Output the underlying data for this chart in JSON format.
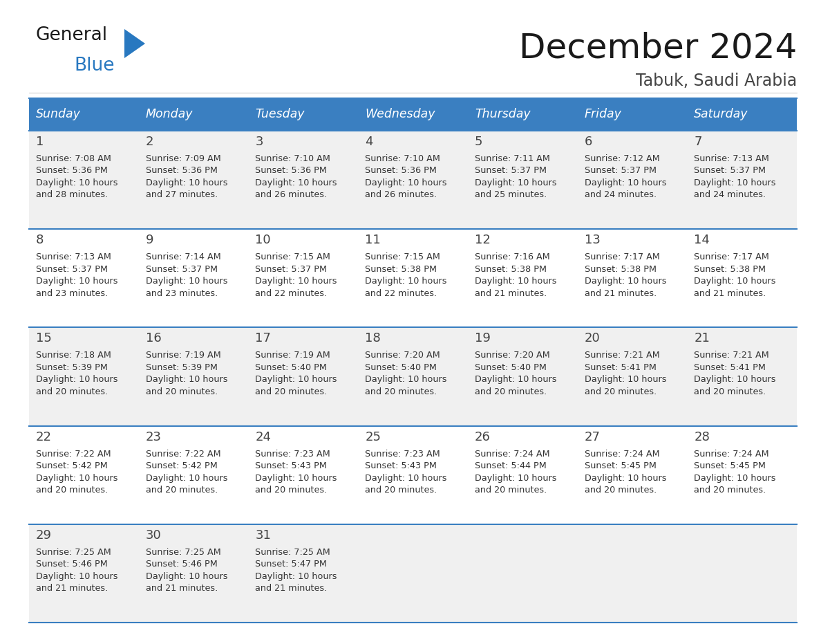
{
  "title": "December 2024",
  "subtitle": "Tabuk, Saudi Arabia",
  "days_of_week": [
    "Sunday",
    "Monday",
    "Tuesday",
    "Wednesday",
    "Thursday",
    "Friday",
    "Saturday"
  ],
  "header_bg": "#3a7fc1",
  "header_text": "#ffffff",
  "row_bg_1": "#f0f0f0",
  "row_bg_2": "#ffffff",
  "border_color": "#3a7fc1",
  "day_num_color": "#444444",
  "text_color": "#333333",
  "calendar": [
    [
      {
        "day": 1,
        "sunrise": "7:08 AM",
        "sunset": "5:36 PM",
        "daylight_line1": "Daylight: 10 hours",
        "daylight_line2": "and 28 minutes."
      },
      {
        "day": 2,
        "sunrise": "7:09 AM",
        "sunset": "5:36 PM",
        "daylight_line1": "Daylight: 10 hours",
        "daylight_line2": "and 27 minutes."
      },
      {
        "day": 3,
        "sunrise": "7:10 AM",
        "sunset": "5:36 PM",
        "daylight_line1": "Daylight: 10 hours",
        "daylight_line2": "and 26 minutes."
      },
      {
        "day": 4,
        "sunrise": "7:10 AM",
        "sunset": "5:36 PM",
        "daylight_line1": "Daylight: 10 hours",
        "daylight_line2": "and 26 minutes."
      },
      {
        "day": 5,
        "sunrise": "7:11 AM",
        "sunset": "5:37 PM",
        "daylight_line1": "Daylight: 10 hours",
        "daylight_line2": "and 25 minutes."
      },
      {
        "day": 6,
        "sunrise": "7:12 AM",
        "sunset": "5:37 PM",
        "daylight_line1": "Daylight: 10 hours",
        "daylight_line2": "and 24 minutes."
      },
      {
        "day": 7,
        "sunrise": "7:13 AM",
        "sunset": "5:37 PM",
        "daylight_line1": "Daylight: 10 hours",
        "daylight_line2": "and 24 minutes."
      }
    ],
    [
      {
        "day": 8,
        "sunrise": "7:13 AM",
        "sunset": "5:37 PM",
        "daylight_line1": "Daylight: 10 hours",
        "daylight_line2": "and 23 minutes."
      },
      {
        "day": 9,
        "sunrise": "7:14 AM",
        "sunset": "5:37 PM",
        "daylight_line1": "Daylight: 10 hours",
        "daylight_line2": "and 23 minutes."
      },
      {
        "day": 10,
        "sunrise": "7:15 AM",
        "sunset": "5:37 PM",
        "daylight_line1": "Daylight: 10 hours",
        "daylight_line2": "and 22 minutes."
      },
      {
        "day": 11,
        "sunrise": "7:15 AM",
        "sunset": "5:38 PM",
        "daylight_line1": "Daylight: 10 hours",
        "daylight_line2": "and 22 minutes."
      },
      {
        "day": 12,
        "sunrise": "7:16 AM",
        "sunset": "5:38 PM",
        "daylight_line1": "Daylight: 10 hours",
        "daylight_line2": "and 21 minutes."
      },
      {
        "day": 13,
        "sunrise": "7:17 AM",
        "sunset": "5:38 PM",
        "daylight_line1": "Daylight: 10 hours",
        "daylight_line2": "and 21 minutes."
      },
      {
        "day": 14,
        "sunrise": "7:17 AM",
        "sunset": "5:38 PM",
        "daylight_line1": "Daylight: 10 hours",
        "daylight_line2": "and 21 minutes."
      }
    ],
    [
      {
        "day": 15,
        "sunrise": "7:18 AM",
        "sunset": "5:39 PM",
        "daylight_line1": "Daylight: 10 hours",
        "daylight_line2": "and 20 minutes."
      },
      {
        "day": 16,
        "sunrise": "7:19 AM",
        "sunset": "5:39 PM",
        "daylight_line1": "Daylight: 10 hours",
        "daylight_line2": "and 20 minutes."
      },
      {
        "day": 17,
        "sunrise": "7:19 AM",
        "sunset": "5:40 PM",
        "daylight_line1": "Daylight: 10 hours",
        "daylight_line2": "and 20 minutes."
      },
      {
        "day": 18,
        "sunrise": "7:20 AM",
        "sunset": "5:40 PM",
        "daylight_line1": "Daylight: 10 hours",
        "daylight_line2": "and 20 minutes."
      },
      {
        "day": 19,
        "sunrise": "7:20 AM",
        "sunset": "5:40 PM",
        "daylight_line1": "Daylight: 10 hours",
        "daylight_line2": "and 20 minutes."
      },
      {
        "day": 20,
        "sunrise": "7:21 AM",
        "sunset": "5:41 PM",
        "daylight_line1": "Daylight: 10 hours",
        "daylight_line2": "and 20 minutes."
      },
      {
        "day": 21,
        "sunrise": "7:21 AM",
        "sunset": "5:41 PM",
        "daylight_line1": "Daylight: 10 hours",
        "daylight_line2": "and 20 minutes."
      }
    ],
    [
      {
        "day": 22,
        "sunrise": "7:22 AM",
        "sunset": "5:42 PM",
        "daylight_line1": "Daylight: 10 hours",
        "daylight_line2": "and 20 minutes."
      },
      {
        "day": 23,
        "sunrise": "7:22 AM",
        "sunset": "5:42 PM",
        "daylight_line1": "Daylight: 10 hours",
        "daylight_line2": "and 20 minutes."
      },
      {
        "day": 24,
        "sunrise": "7:23 AM",
        "sunset": "5:43 PM",
        "daylight_line1": "Daylight: 10 hours",
        "daylight_line2": "and 20 minutes."
      },
      {
        "day": 25,
        "sunrise": "7:23 AM",
        "sunset": "5:43 PM",
        "daylight_line1": "Daylight: 10 hours",
        "daylight_line2": "and 20 minutes."
      },
      {
        "day": 26,
        "sunrise": "7:24 AM",
        "sunset": "5:44 PM",
        "daylight_line1": "Daylight: 10 hours",
        "daylight_line2": "and 20 minutes."
      },
      {
        "day": 27,
        "sunrise": "7:24 AM",
        "sunset": "5:45 PM",
        "daylight_line1": "Daylight: 10 hours",
        "daylight_line2": "and 20 minutes."
      },
      {
        "day": 28,
        "sunrise": "7:24 AM",
        "sunset": "5:45 PM",
        "daylight_line1": "Daylight: 10 hours",
        "daylight_line2": "and 20 minutes."
      }
    ],
    [
      {
        "day": 29,
        "sunrise": "7:25 AM",
        "sunset": "5:46 PM",
        "daylight_line1": "Daylight: 10 hours",
        "daylight_line2": "and 21 minutes."
      },
      {
        "day": 30,
        "sunrise": "7:25 AM",
        "sunset": "5:46 PM",
        "daylight_line1": "Daylight: 10 hours",
        "daylight_line2": "and 21 minutes."
      },
      {
        "day": 31,
        "sunrise": "7:25 AM",
        "sunset": "5:47 PM",
        "daylight_line1": "Daylight: 10 hours",
        "daylight_line2": "and 21 minutes."
      },
      null,
      null,
      null,
      null
    ]
  ],
  "figsize": [
    11.88,
    9.18
  ],
  "dpi": 100
}
